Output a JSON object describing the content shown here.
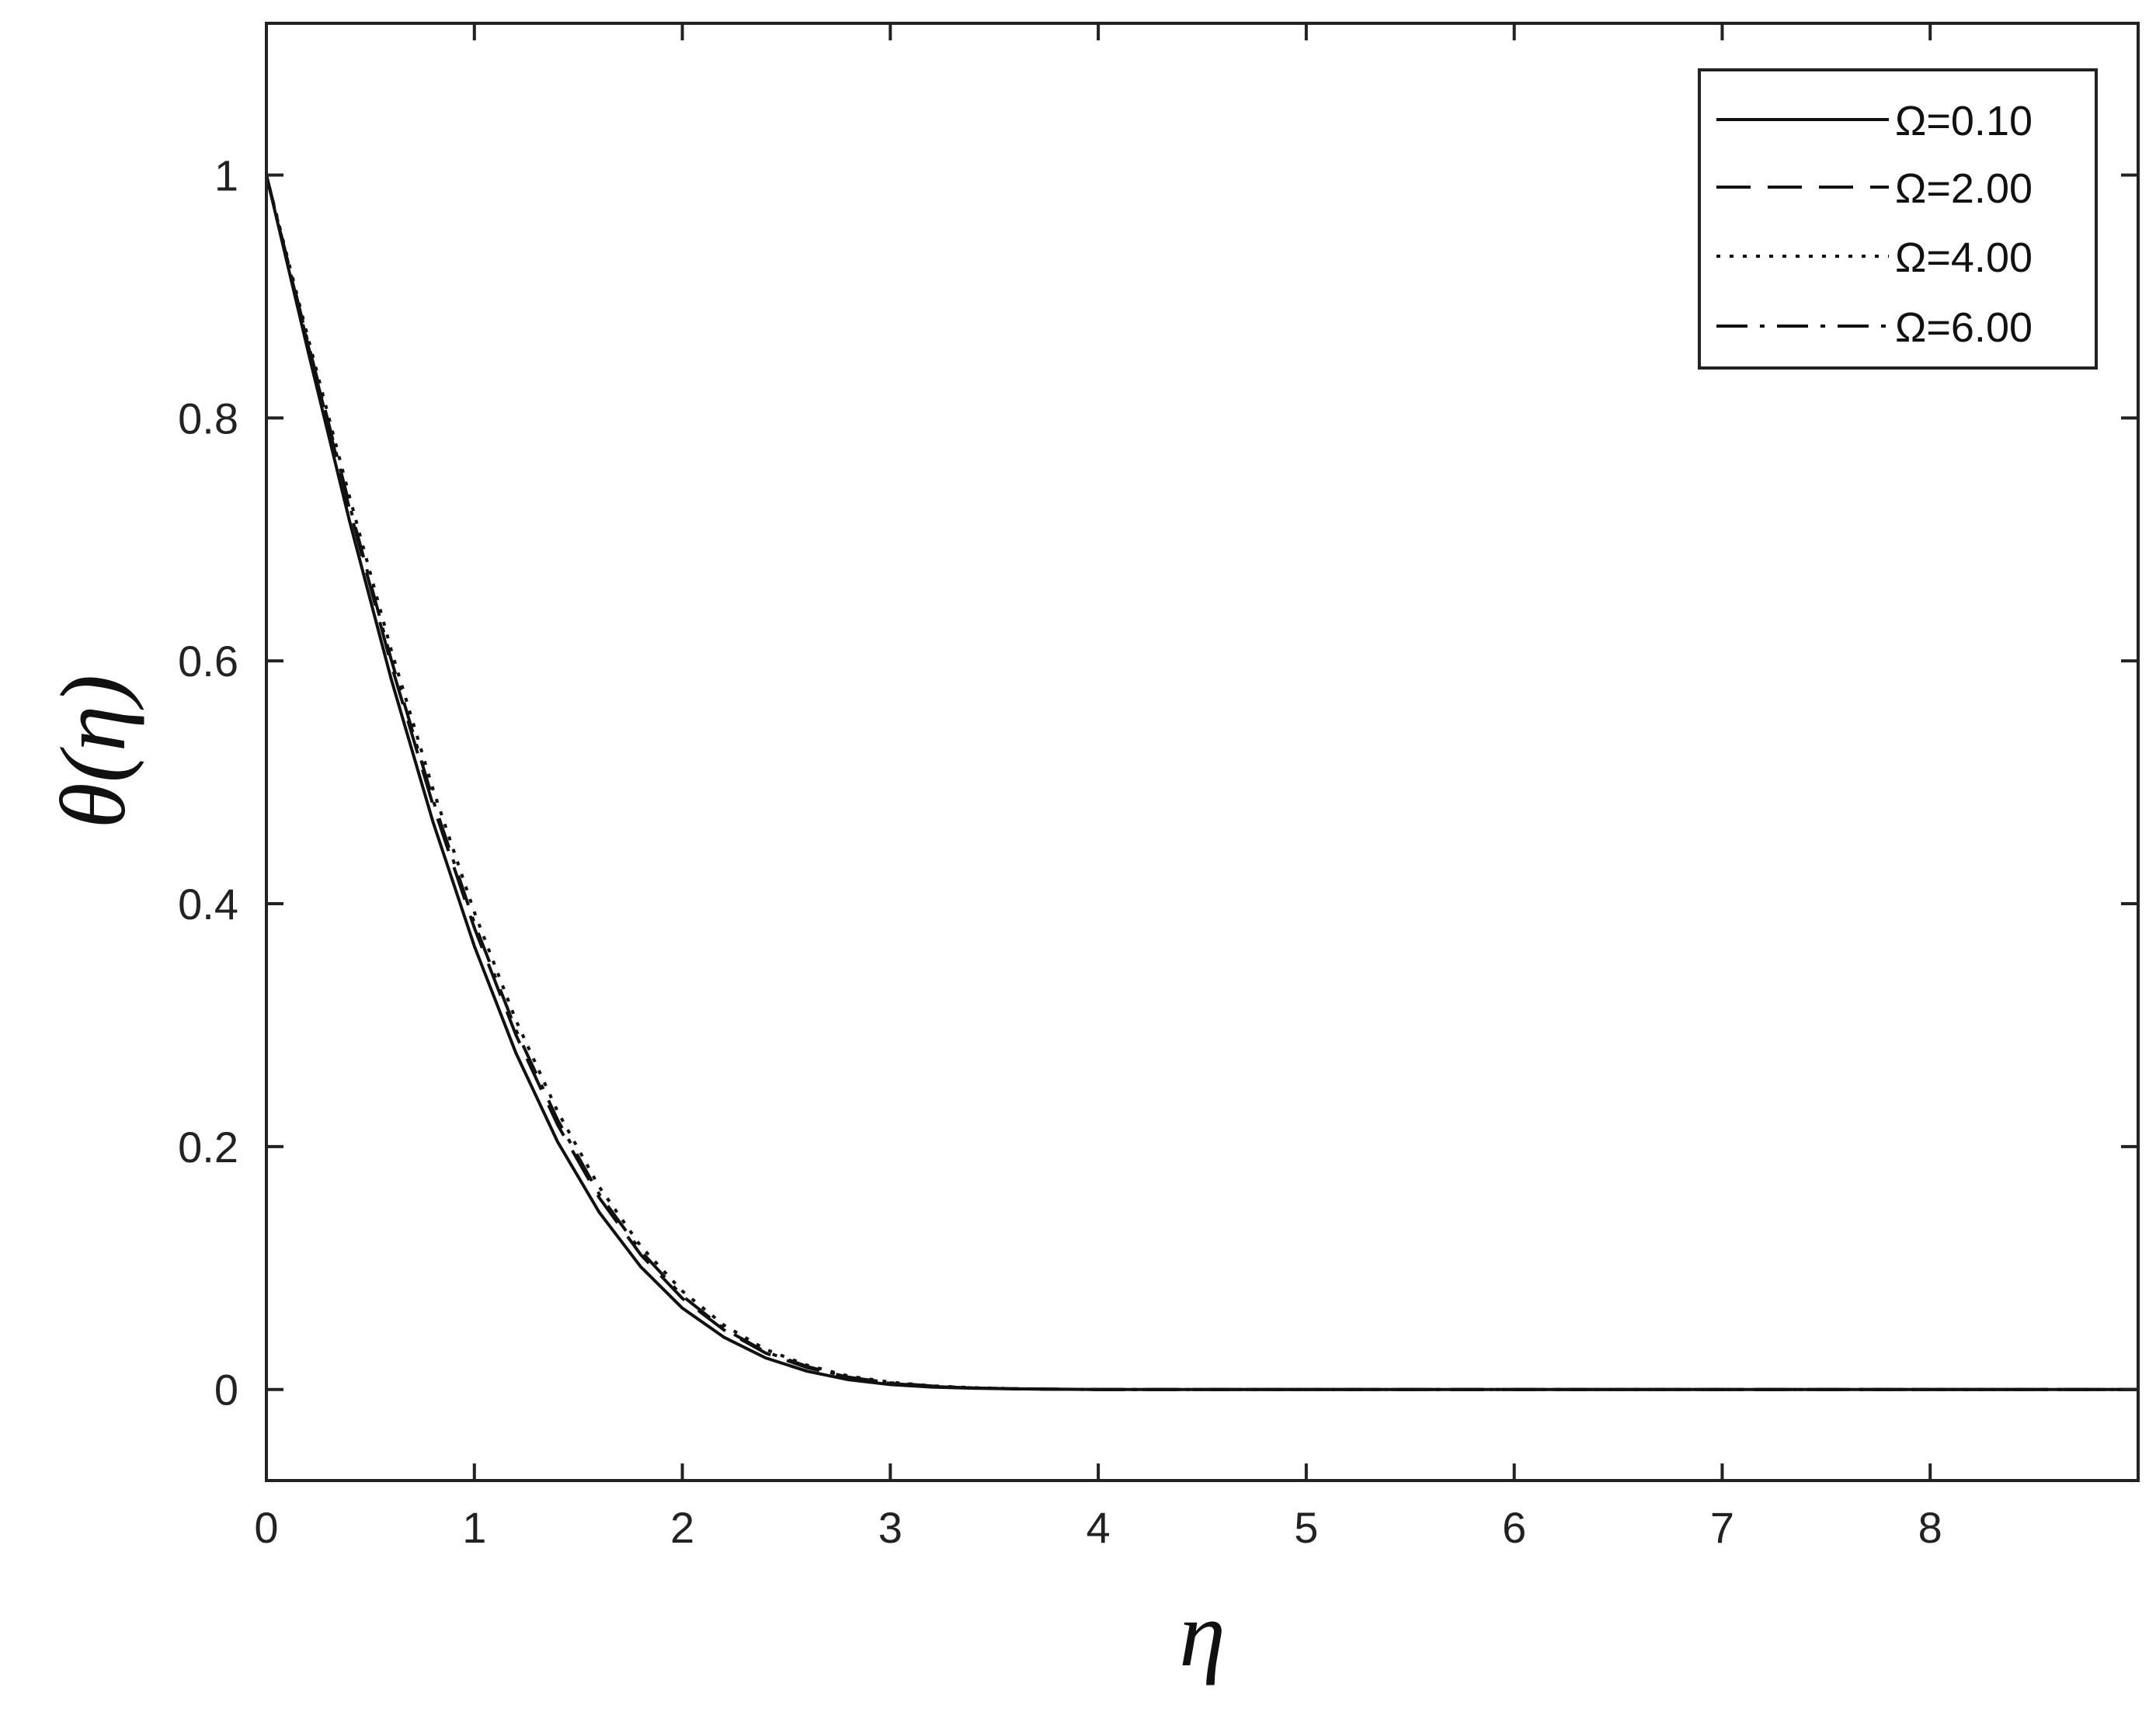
{
  "chart_data": {
    "type": "line",
    "title": "",
    "xlabel": "η",
    "ylabel": "θ(η)",
    "xlim": [
      0,
      9
    ],
    "ylim": [
      -0.075,
      1.125
    ],
    "xticks": [
      0,
      1,
      2,
      3,
      4,
      5,
      6,
      7,
      8
    ],
    "yticks": [
      0,
      0.2,
      0.4,
      0.6,
      0.8,
      1
    ],
    "xtick_labels": [
      "0",
      "1",
      "2",
      "3",
      "4",
      "5",
      "6",
      "7",
      "8"
    ],
    "ytick_labels": [
      "0",
      "0.2",
      "0.4",
      "0.6",
      "0.8",
      "1"
    ],
    "grid": false,
    "legend_position": "top-right",
    "x": [
      0,
      0.2,
      0.4,
      0.6,
      0.8,
      1.0,
      1.2,
      1.4,
      1.6,
      1.8,
      2.0,
      2.2,
      2.4,
      2.6,
      2.8,
      3.0,
      3.2,
      3.4,
      3.6,
      3.8,
      4.0,
      4.5,
      5,
      6,
      7,
      8,
      9
    ],
    "series": [
      {
        "name": "Ω=0.10",
        "style": "solid",
        "values": [
          1.0,
          0.855,
          0.715,
          0.585,
          0.468,
          0.365,
          0.277,
          0.204,
          0.146,
          0.101,
          0.067,
          0.043,
          0.026,
          0.015,
          0.008,
          0.004,
          0.002,
          0.001,
          0.0005,
          0.0002,
          0.0,
          0.0,
          0.0,
          0.0,
          0.0,
          0.0,
          0.0
        ]
      },
      {
        "name": "Ω=2.00",
        "style": "dashed",
        "values": [
          1.0,
          0.86,
          0.725,
          0.597,
          0.482,
          0.38,
          0.292,
          0.218,
          0.158,
          0.111,
          0.075,
          0.049,
          0.03,
          0.018,
          0.01,
          0.005,
          0.0025,
          0.0012,
          0.0005,
          0.0002,
          0.0,
          0.0,
          0.0,
          0.0,
          0.0,
          0.0,
          0.0
        ]
      },
      {
        "name": "Ω=4.00",
        "style": "dotted",
        "values": [
          1.0,
          0.866,
          0.735,
          0.609,
          0.495,
          0.393,
          0.304,
          0.229,
          0.167,
          0.118,
          0.081,
          0.053,
          0.033,
          0.02,
          0.011,
          0.006,
          0.003,
          0.0014,
          0.0006,
          0.0002,
          0.0,
          0.0,
          0.0,
          0.0,
          0.0,
          0.0,
          0.0
        ]
      },
      {
        "name": "Ω=6.00",
        "style": "dashdot",
        "values": [
          1.0,
          0.862,
          0.728,
          0.601,
          0.486,
          0.384,
          0.296,
          0.222,
          0.161,
          0.114,
          0.077,
          0.05,
          0.031,
          0.019,
          0.01,
          0.0055,
          0.0028,
          0.0013,
          0.0005,
          0.0002,
          0.0,
          0.0,
          0.0,
          0.0,
          0.0,
          0.0,
          0.0
        ]
      }
    ]
  }
}
